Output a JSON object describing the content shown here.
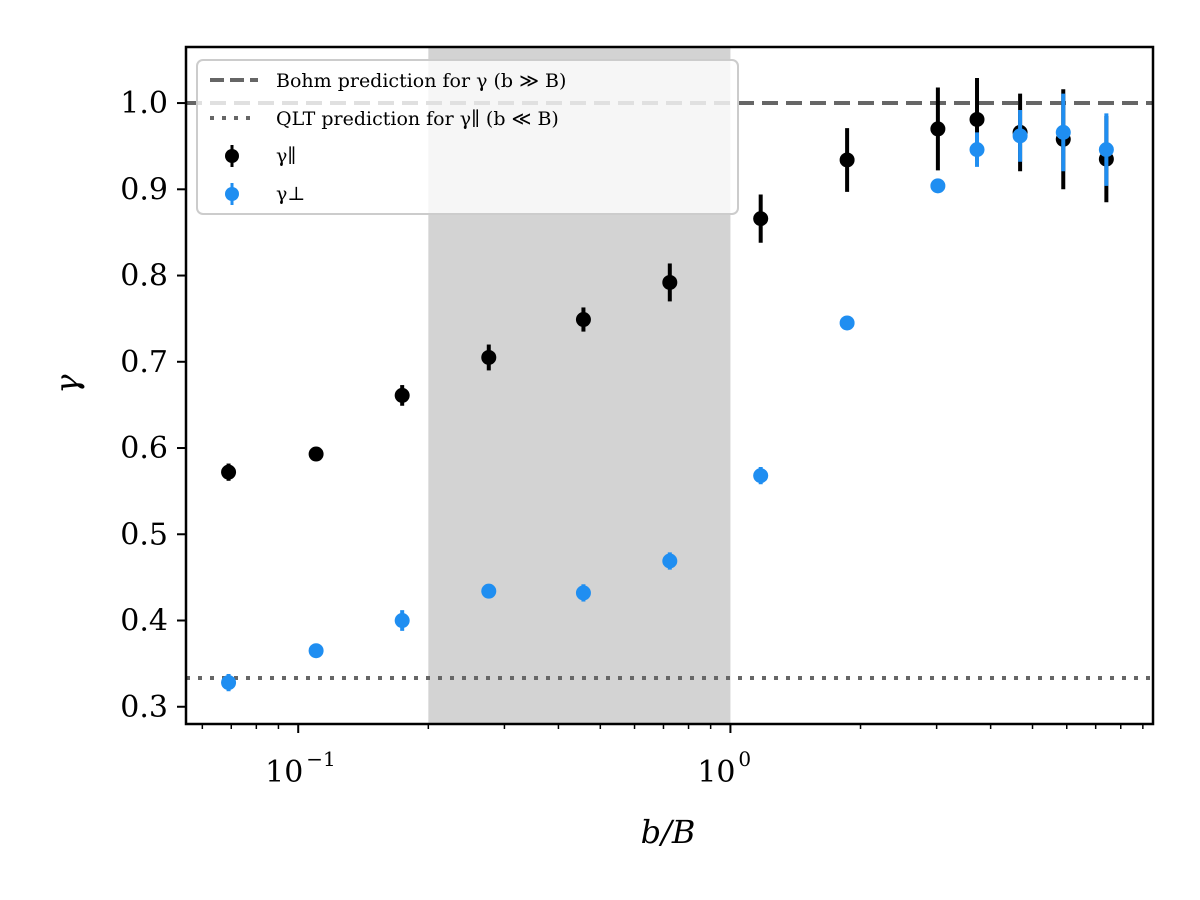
{
  "chart_data": {
    "type": "scatter",
    "title": "",
    "xlabel": "b/B",
    "ylabel": "γ",
    "xscale": "log",
    "xlim": [
      0.055,
      9.5
    ],
    "ylim": [
      0.28,
      1.065
    ],
    "shaded_region": [
      0.2,
      1.0
    ],
    "y_ticks": [
      0.3,
      0.4,
      0.5,
      0.6,
      0.7,
      0.8,
      0.9,
      1.0
    ],
    "y_tick_labels": [
      "0.3",
      "0.4",
      "0.5",
      "0.6",
      "0.7",
      "0.8",
      "0.9",
      "1.0"
    ],
    "x_major_ticks": [
      {
        "value": 0.1,
        "base": "10",
        "exp": "−1"
      },
      {
        "value": 1.0,
        "base": "10",
        "exp": "0"
      }
    ],
    "reference_lines": [
      {
        "name": "Bohm prediction for γ (b ≫ B)",
        "y": 1.0,
        "style": "dashed",
        "color": "#666666"
      },
      {
        "name": "QLT prediction for γ∥ (b ≪ B)",
        "y": 0.3333,
        "style": "dotted",
        "color": "#666666"
      }
    ],
    "series": [
      {
        "name": "γ∥",
        "color": "#000000",
        "x": [
          0.069,
          0.11,
          0.174,
          0.276,
          0.457,
          0.724,
          1.175,
          1.862,
          3.02,
          3.72,
          4.68,
          5.89,
          7.41
        ],
        "y": [
          0.572,
          0.593,
          0.661,
          0.705,
          0.749,
          0.792,
          0.866,
          0.934,
          0.97,
          0.981,
          0.966,
          0.958,
          0.935
        ],
        "err": [
          0.01,
          0.006,
          0.012,
          0.015,
          0.014,
          0.022,
          0.028,
          0.037,
          0.048,
          0.048,
          0.045,
          0.058,
          0.05
        ]
      },
      {
        "name": "γ⊥",
        "color": "#1f8ef1",
        "x": [
          0.069,
          0.11,
          0.174,
          0.276,
          0.457,
          0.724,
          1.175,
          1.862,
          3.02,
          3.72,
          4.68,
          5.89,
          7.41
        ],
        "y": [
          0.328,
          0.365,
          0.4,
          0.434,
          0.432,
          0.469,
          0.568,
          0.745,
          0.904,
          0.946,
          0.962,
          0.966,
          0.946
        ],
        "err": [
          0.01,
          0.006,
          0.012,
          0.008,
          0.01,
          0.01,
          0.01,
          0.004,
          0.005,
          0.02,
          0.03,
          0.045,
          0.042
        ]
      }
    ]
  },
  "legend": {
    "bohm_label": "Bohm prediction for γ (b ≫ B)",
    "qlt_label": "QLT prediction for γ∥ (b ≪ B)",
    "gamma_par_label": "γ∥",
    "gamma_perp_label": "γ⊥"
  }
}
